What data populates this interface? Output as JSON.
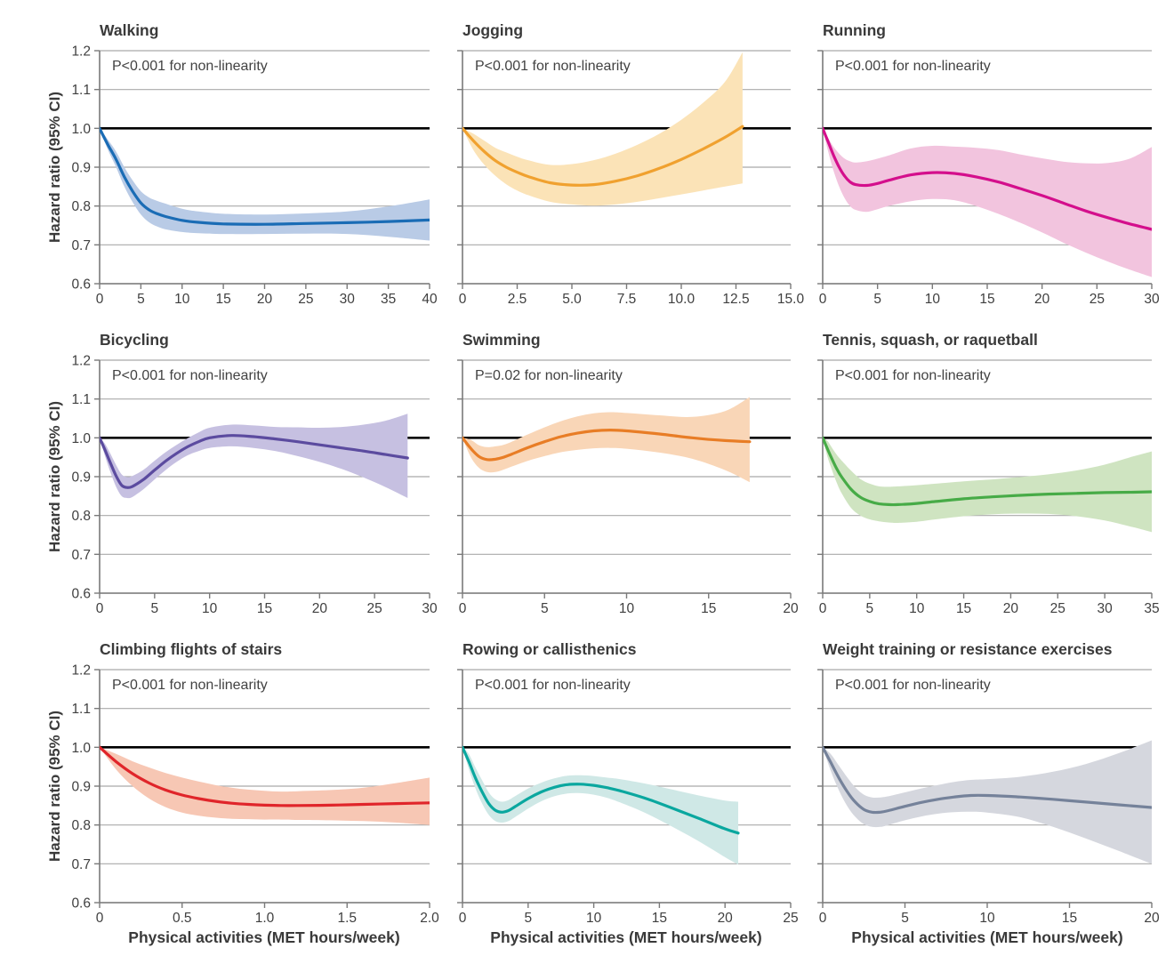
{
  "figure": {
    "ylabel": "Hazard ratio (95% CI)",
    "xlabel": "Physical activities (MET hours/week)",
    "ylim": [
      0.6,
      1.2
    ],
    "yticks": [
      "1.2",
      "1.1",
      "1.0",
      "0.9",
      "0.8",
      "0.7",
      "0.6"
    ],
    "reference_line": 1.0,
    "grid_color": "#a9a9a9",
    "axis_color": "#7a7a7a",
    "reference_color": "#000000",
    "text_color": "#3f3f3f"
  },
  "chart_data": [
    {
      "type": "line",
      "title": "Walking",
      "note": "P<0.001 for non-linearity",
      "line_color": "#1a6cb5",
      "band_color": "#b9cbe6",
      "xlim": [
        0,
        40
      ],
      "xticks": [
        "0",
        "5",
        "10",
        "15",
        "20",
        "25",
        "30",
        "35",
        "40"
      ],
      "x": [
        0,
        1,
        2,
        3,
        4,
        5,
        6,
        7,
        8,
        10,
        12,
        15,
        20,
        25,
        30,
        35,
        40
      ],
      "y": [
        1.0,
        0.958,
        0.92,
        0.875,
        0.838,
        0.808,
        0.79,
        0.78,
        0.773,
        0.763,
        0.758,
        0.754,
        0.753,
        0.755,
        0.757,
        0.76,
        0.764
      ],
      "lo": [
        1.0,
        0.945,
        0.9,
        0.85,
        0.81,
        0.778,
        0.758,
        0.747,
        0.74,
        0.733,
        0.73,
        0.728,
        0.728,
        0.729,
        0.728,
        0.721,
        0.711
      ],
      "hi": [
        1.0,
        0.971,
        0.94,
        0.9,
        0.866,
        0.838,
        0.822,
        0.813,
        0.806,
        0.793,
        0.786,
        0.78,
        0.778,
        0.781,
        0.786,
        0.799,
        0.817
      ]
    },
    {
      "type": "line",
      "title": "Jogging",
      "note": "P<0.001 for non-linearity",
      "line_color": "#f0a12f",
      "band_color": "#fbe3b7",
      "xlim": [
        0,
        15
      ],
      "xticks": [
        "0",
        "2.5",
        "5.0",
        "7.5",
        "10.0",
        "12.5",
        "15.0"
      ],
      "x": [
        0,
        0.5,
        1,
        1.5,
        2,
        2.5,
        3,
        4,
        5,
        6,
        7,
        8,
        9,
        10,
        11,
        12,
        12.8
      ],
      "y": [
        1.0,
        0.968,
        0.94,
        0.917,
        0.9,
        0.887,
        0.876,
        0.86,
        0.854,
        0.855,
        0.864,
        0.878,
        0.897,
        0.92,
        0.947,
        0.977,
        1.005
      ],
      "lo": [
        1.0,
        0.944,
        0.906,
        0.878,
        0.856,
        0.84,
        0.828,
        0.811,
        0.804,
        0.801,
        0.804,
        0.811,
        0.82,
        0.83,
        0.84,
        0.85,
        0.858
      ],
      "hi": [
        1.0,
        0.986,
        0.968,
        0.95,
        0.938,
        0.927,
        0.918,
        0.906,
        0.908,
        0.918,
        0.935,
        0.958,
        0.986,
        1.022,
        1.066,
        1.12,
        1.196
      ]
    },
    {
      "type": "line",
      "title": "Running",
      "note": "P<0.001 for non-linearity",
      "line_color": "#d40f8c",
      "band_color": "#f2c4de",
      "xlim": [
        0,
        30
      ],
      "xticks": [
        "0",
        "5",
        "10",
        "15",
        "20",
        "25",
        "30"
      ],
      "x": [
        0,
        0.5,
        1,
        1.5,
        2,
        2.5,
        3,
        4,
        5,
        6,
        8,
        10,
        12,
        14,
        16,
        18,
        20,
        22,
        24,
        26,
        28,
        30
      ],
      "y": [
        1.0,
        0.965,
        0.93,
        0.9,
        0.877,
        0.862,
        0.855,
        0.853,
        0.858,
        0.866,
        0.88,
        0.886,
        0.884,
        0.875,
        0.862,
        0.845,
        0.827,
        0.807,
        0.787,
        0.77,
        0.754,
        0.74
      ],
      "lo": [
        1.0,
        0.94,
        0.89,
        0.85,
        0.82,
        0.8,
        0.79,
        0.785,
        0.792,
        0.8,
        0.812,
        0.818,
        0.815,
        0.8,
        0.78,
        0.757,
        0.732,
        0.705,
        0.68,
        0.657,
        0.636,
        0.617
      ],
      "hi": [
        1.0,
        0.975,
        0.952,
        0.935,
        0.922,
        0.915,
        0.912,
        0.915,
        0.922,
        0.93,
        0.948,
        0.955,
        0.953,
        0.95,
        0.944,
        0.933,
        0.923,
        0.914,
        0.91,
        0.911,
        0.922,
        0.952
      ]
    },
    {
      "type": "line",
      "title": "Bicycling",
      "note": "P<0.001 for non-linearity",
      "line_color": "#5b4b9f",
      "band_color": "#c6c0e1",
      "xlim": [
        0,
        30
      ],
      "xticks": [
        "0",
        "5",
        "10",
        "15",
        "20",
        "25",
        "30"
      ],
      "x": [
        0,
        0.5,
        1,
        1.5,
        2,
        2.5,
        3,
        4,
        5,
        6,
        7,
        8,
        9,
        10,
        12,
        14,
        16,
        18,
        20,
        22,
        24,
        26,
        28
      ],
      "y": [
        1.0,
        0.968,
        0.934,
        0.902,
        0.878,
        0.872,
        0.875,
        0.893,
        0.917,
        0.94,
        0.96,
        0.977,
        0.99,
        1.0,
        1.006,
        1.003,
        0.997,
        0.99,
        0.982,
        0.974,
        0.966,
        0.957,
        0.948
      ],
      "lo": [
        1.0,
        0.952,
        0.91,
        0.874,
        0.85,
        0.845,
        0.848,
        0.868,
        0.893,
        0.917,
        0.938,
        0.955,
        0.966,
        0.974,
        0.978,
        0.974,
        0.966,
        0.953,
        0.938,
        0.92,
        0.898,
        0.873,
        0.845
      ],
      "hi": [
        1.0,
        0.984,
        0.958,
        0.93,
        0.906,
        0.899,
        0.902,
        0.918,
        0.941,
        0.963,
        0.982,
        0.999,
        1.014,
        1.026,
        1.034,
        1.032,
        1.028,
        1.027,
        1.026,
        1.028,
        1.034,
        1.044,
        1.062
      ]
    },
    {
      "type": "line",
      "title": "Swimming",
      "note": "P=0.02 for non-linearity",
      "line_color": "#e87d26",
      "band_color": "#f9d6b7",
      "xlim": [
        0,
        20
      ],
      "xticks": [
        "0",
        "5",
        "10",
        "15",
        "20"
      ],
      "x": [
        0,
        0.5,
        1,
        1.5,
        2,
        2.5,
        3,
        4,
        5,
        6,
        7,
        8,
        9,
        10,
        12,
        14,
        16,
        17.5
      ],
      "y": [
        1.0,
        0.973,
        0.952,
        0.944,
        0.945,
        0.95,
        0.958,
        0.975,
        0.99,
        1.003,
        1.012,
        1.018,
        1.02,
        1.018,
        1.01,
        1.0,
        0.993,
        0.99
      ],
      "lo": [
        1.0,
        0.951,
        0.923,
        0.912,
        0.912,
        0.918,
        0.926,
        0.941,
        0.953,
        0.963,
        0.969,
        0.973,
        0.974,
        0.972,
        0.962,
        0.946,
        0.917,
        0.886
      ],
      "hi": [
        1.0,
        0.995,
        0.981,
        0.976,
        0.978,
        0.982,
        0.99,
        1.009,
        1.027,
        1.043,
        1.055,
        1.063,
        1.066,
        1.064,
        1.058,
        1.054,
        1.069,
        1.105
      ]
    },
    {
      "type": "line",
      "title": "Tennis, squash, or raquetball",
      "note": "P<0.001 for non-linearity",
      "line_color": "#47ab47",
      "band_color": "#cfe4c1",
      "xlim": [
        0,
        35
      ],
      "xticks": [
        "0",
        "5",
        "10",
        "15",
        "20",
        "25",
        "30",
        "35"
      ],
      "x": [
        0,
        0.5,
        1,
        1.5,
        2,
        3,
        4,
        5,
        6,
        7,
        8,
        10,
        12,
        15,
        18,
        21,
        24,
        27,
        30,
        33,
        35
      ],
      "y": [
        1.0,
        0.972,
        0.945,
        0.92,
        0.9,
        0.868,
        0.847,
        0.836,
        0.83,
        0.828,
        0.828,
        0.831,
        0.836,
        0.843,
        0.848,
        0.852,
        0.855,
        0.857,
        0.859,
        0.86,
        0.861
      ],
      "lo": [
        1.0,
        0.952,
        0.916,
        0.884,
        0.858,
        0.82,
        0.8,
        0.79,
        0.785,
        0.782,
        0.781,
        0.784,
        0.79,
        0.798,
        0.803,
        0.805,
        0.804,
        0.798,
        0.787,
        0.77,
        0.757
      ],
      "hi": [
        1.0,
        0.992,
        0.974,
        0.956,
        0.942,
        0.916,
        0.894,
        0.882,
        0.875,
        0.874,
        0.875,
        0.878,
        0.882,
        0.888,
        0.893,
        0.899,
        0.906,
        0.916,
        0.931,
        0.952,
        0.965
      ]
    },
    {
      "type": "line",
      "title": "Climbing flights of stairs",
      "note": "P<0.001 for non-linearity",
      "line_color": "#e0252a",
      "band_color": "#f7c7b4",
      "xlim": [
        0,
        2
      ],
      "xticks": [
        "0",
        "0.5",
        "1.0",
        "1.5",
        "2.0"
      ],
      "x": [
        0,
        0.1,
        0.2,
        0.3,
        0.4,
        0.5,
        0.6,
        0.7,
        0.8,
        0.9,
        1.0,
        1.1,
        1.2,
        1.4,
        1.6,
        1.8,
        2.0
      ],
      "y": [
        1.0,
        0.963,
        0.932,
        0.908,
        0.89,
        0.877,
        0.868,
        0.861,
        0.856,
        0.853,
        0.851,
        0.85,
        0.85,
        0.851,
        0.853,
        0.855,
        0.857
      ],
      "lo": [
        1.0,
        0.943,
        0.9,
        0.868,
        0.846,
        0.832,
        0.824,
        0.819,
        0.816,
        0.815,
        0.814,
        0.814,
        0.813,
        0.812,
        0.81,
        0.806,
        0.8
      ],
      "hi": [
        1.0,
        0.983,
        0.964,
        0.948,
        0.934,
        0.922,
        0.912,
        0.903,
        0.896,
        0.891,
        0.888,
        0.886,
        0.887,
        0.89,
        0.896,
        0.908,
        0.922
      ]
    },
    {
      "type": "line",
      "title": "Rowing or callisthenics",
      "note": "P<0.001 for non-linearity",
      "line_color": "#0aa79f",
      "band_color": "#cfe8e6",
      "xlim": [
        0,
        25
      ],
      "xticks": [
        "0",
        "5",
        "10",
        "15",
        "20",
        "25"
      ],
      "x": [
        0,
        0.5,
        1,
        1.5,
        2,
        2.5,
        3,
        3.5,
        4,
        5,
        6,
        7,
        8,
        9,
        10,
        11,
        12,
        14,
        16,
        18,
        20,
        21
      ],
      "y": [
        1.0,
        0.962,
        0.92,
        0.885,
        0.855,
        0.838,
        0.833,
        0.837,
        0.847,
        0.868,
        0.885,
        0.897,
        0.904,
        0.905,
        0.902,
        0.896,
        0.888,
        0.868,
        0.843,
        0.817,
        0.79,
        0.779
      ],
      "lo": [
        1.0,
        0.942,
        0.893,
        0.855,
        0.826,
        0.81,
        0.806,
        0.81,
        0.82,
        0.842,
        0.861,
        0.874,
        0.881,
        0.882,
        0.878,
        0.87,
        0.858,
        0.83,
        0.795,
        0.758,
        0.717,
        0.698
      ],
      "hi": [
        1.0,
        0.982,
        0.947,
        0.915,
        0.884,
        0.866,
        0.86,
        0.864,
        0.874,
        0.894,
        0.909,
        0.92,
        0.927,
        0.928,
        0.926,
        0.922,
        0.918,
        0.906,
        0.891,
        0.876,
        0.863,
        0.86
      ]
    },
    {
      "type": "line",
      "title": "Weight training or resistance exercises",
      "note": "P<0.001 for non-linearity",
      "line_color": "#75829a",
      "band_color": "#d5d7de",
      "xlim": [
        0,
        20
      ],
      "xticks": [
        "0",
        "5",
        "10",
        "15",
        "20"
      ],
      "x": [
        0,
        0.5,
        1,
        1.5,
        2,
        2.5,
        3,
        3.5,
        4,
        5,
        6,
        7,
        8,
        9,
        10,
        12,
        14,
        16,
        18,
        20
      ],
      "y": [
        1.0,
        0.96,
        0.92,
        0.885,
        0.858,
        0.84,
        0.833,
        0.833,
        0.837,
        0.848,
        0.858,
        0.866,
        0.872,
        0.876,
        0.876,
        0.872,
        0.866,
        0.859,
        0.852,
        0.845
      ],
      "lo": [
        1.0,
        0.938,
        0.888,
        0.848,
        0.82,
        0.802,
        0.795,
        0.795,
        0.8,
        0.812,
        0.822,
        0.829,
        0.833,
        0.834,
        0.832,
        0.82,
        0.795,
        0.765,
        0.733,
        0.7
      ],
      "hi": [
        1.0,
        0.982,
        0.952,
        0.922,
        0.896,
        0.878,
        0.871,
        0.871,
        0.874,
        0.884,
        0.894,
        0.903,
        0.911,
        0.916,
        0.918,
        0.924,
        0.937,
        0.957,
        0.985,
        1.018
      ]
    }
  ]
}
